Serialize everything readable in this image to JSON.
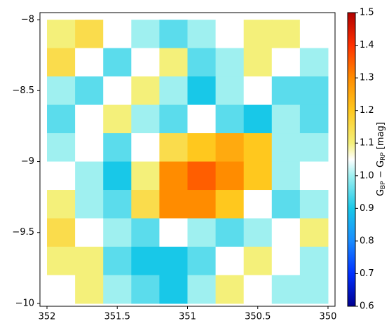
{
  "chart_data": {
    "type": "heatmap",
    "xlim": [
      352.05,
      349.95
    ],
    "ylim": [
      -10.02,
      -7.95
    ],
    "xticks": [
      352,
      351.5,
      351,
      350.5,
      350
    ],
    "yticks": [
      {
        "value": -8,
        "label": "−8"
      },
      {
        "value": -8.5,
        "label": "−8.5"
      },
      {
        "value": -9,
        "label": "−9"
      },
      {
        "value": -9.5,
        "label": "−9.5"
      },
      {
        "value": -10,
        "label": "−10"
      }
    ],
    "x": [
      351.9,
      351.7,
      351.5,
      351.3,
      351.1,
      350.9,
      350.7,
      350.5,
      350.3,
      350.1
    ],
    "y": [
      -8.1,
      -8.3,
      -8.5,
      -8.7,
      -8.9,
      -9.1,
      -9.3,
      -9.5,
      -9.7,
      -9.9
    ],
    "z": [
      [
        1.1,
        1.15,
        1.05,
        1.0,
        0.95,
        1.0,
        1.05,
        1.1,
        1.1,
        1.05
      ],
      [
        1.15,
        1.05,
        0.95,
        1.05,
        1.1,
        0.95,
        1.0,
        1.1,
        1.05,
        1.0
      ],
      [
        1.0,
        0.95,
        1.05,
        1.1,
        1.0,
        0.9,
        1.0,
        1.05,
        0.95,
        0.95
      ],
      [
        0.95,
        1.05,
        1.1,
        1.0,
        0.95,
        1.05,
        0.95,
        0.9,
        1.0,
        0.95
      ],
      [
        1.0,
        1.05,
        0.95,
        1.05,
        1.15,
        1.2,
        1.25,
        1.2,
        1.0,
        1.0
      ],
      [
        1.05,
        1.0,
        0.9,
        1.1,
        1.3,
        1.35,
        1.3,
        1.2,
        1.0,
        1.05
      ],
      [
        1.1,
        1.0,
        0.95,
        1.15,
        1.3,
        1.3,
        1.2,
        1.05,
        0.95,
        1.0
      ],
      [
        1.15,
        1.05,
        1.0,
        0.95,
        1.05,
        1.0,
        0.95,
        1.0,
        1.05,
        1.1
      ],
      [
        1.1,
        1.1,
        0.95,
        0.9,
        0.9,
        0.95,
        1.05,
        1.1,
        1.05,
        1.0
      ],
      [
        1.05,
        1.1,
        1.0,
        0.95,
        0.9,
        1.0,
        1.1,
        1.05,
        1.0,
        1.0
      ]
    ],
    "clim": [
      0.6,
      1.5
    ],
    "colorscale": [
      [
        0.6,
        "#00008f"
      ],
      [
        0.7,
        "#0030ff"
      ],
      [
        0.8,
        "#1a8cff"
      ],
      [
        0.9,
        "#18c8e8"
      ],
      [
        1.0,
        "#9ff0f0"
      ],
      [
        1.05,
        "#ffffff"
      ],
      [
        1.1,
        "#f4f07a"
      ],
      [
        1.2,
        "#ffc81e"
      ],
      [
        1.3,
        "#ff8c00"
      ],
      [
        1.4,
        "#ff3000"
      ],
      [
        1.5,
        "#b00000"
      ]
    ],
    "cticks": [
      0.6,
      0.7,
      0.8,
      0.9,
      1.0,
      1.1,
      1.2,
      1.3,
      1.4,
      1.5
    ],
    "ctick_labels": [
      "0.6",
      "0.7",
      "0.8",
      "0.9",
      "1.0",
      "1.1",
      "1.2",
      "1.3",
      "1.4",
      "1.5"
    ],
    "colorbar_label": [
      "G",
      "BP",
      " − G",
      "RP",
      " [mag]"
    ]
  }
}
